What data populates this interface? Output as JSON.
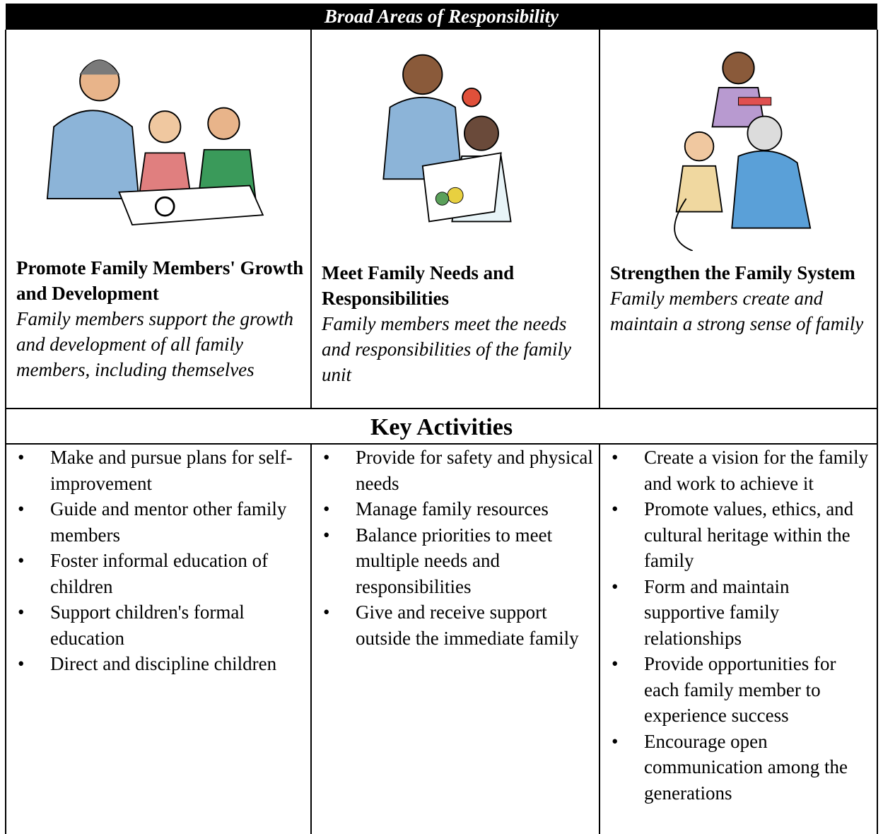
{
  "header": {
    "title": "Broad Areas of Responsibility"
  },
  "columns": [
    {
      "heading": "Promote Family Members' Growth and Development",
      "description": "Family members support the growth and development of all family members, including themselves",
      "activities": [
        "Make and pursue plans for self-improvement",
        "Guide and mentor other family members",
        "Foster informal education of children",
        "Support children's formal education",
        "Direct and discipline children"
      ]
    },
    {
      "heading": "Meet Family Needs and Responsibilities",
      "description": "Family members meet the needs and responsibilities of the family unit",
      "activities": [
        "Provide for safety and physical needs",
        "Manage family resources",
        "Balance priorities to meet multiple needs and responsibilities",
        "Give and receive support outside the immediate family"
      ]
    },
    {
      "heading": "Strengthen the Family System",
      "description": "Family members create and maintain a strong sense of family",
      "activities": [
        "Create a vision for the family and work to achieve it",
        "Promote values, ethics, and cultural heritage within the family",
        "Form and maintain supportive family relationships",
        "Provide opportunities for each family member to experience success",
        "Encourage open communication among the generations"
      ]
    }
  ],
  "key_activities": {
    "title": "Key Activities"
  }
}
